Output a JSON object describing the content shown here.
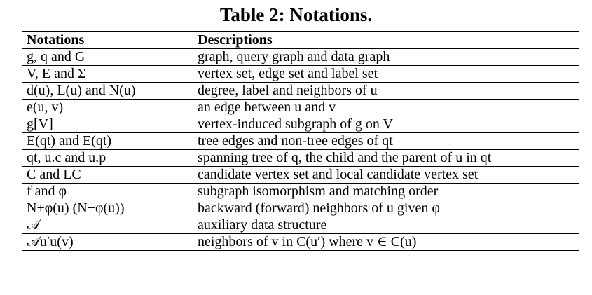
{
  "caption": "Table 2: Notations.",
  "header": {
    "col1": "Notations",
    "col2": "Descriptions"
  },
  "rows": [
    {
      "notation": "g, q and G",
      "description": "graph, query graph and data graph"
    },
    {
      "notation": "V, E and Σ",
      "description": "vertex set, edge set and label set"
    },
    {
      "notation": "d(u), L(u) and N(u)",
      "description": "degree, label and neighbors of u"
    },
    {
      "notation": "e(u, v)",
      "description": "an edge between u and v"
    },
    {
      "notation": "g[V]",
      "description": "vertex-induced subgraph of g on V"
    },
    {
      "notation": "E(qt) and E(qt)",
      "description": "tree edges and non-tree edges of qt"
    },
    {
      "notation": "qt, u.c and u.p",
      "description": "spanning tree of q, the child and the parent of u in qt"
    },
    {
      "notation": "C and LC",
      "description": "candidate vertex set and local candidate vertex set"
    },
    {
      "notation": "f and φ",
      "description": "subgraph isomorphism and matching order"
    },
    {
      "notation": "N+φ(u) (N−φ(u))",
      "description": "backward (forward) neighbors of u given φ"
    },
    {
      "notation": "𝒜",
      "description": "auxiliary data structure"
    },
    {
      "notation": "𝒜u′u(v)",
      "description": "neighbors of v in C(u′) where v ∈ C(u)"
    }
  ]
}
